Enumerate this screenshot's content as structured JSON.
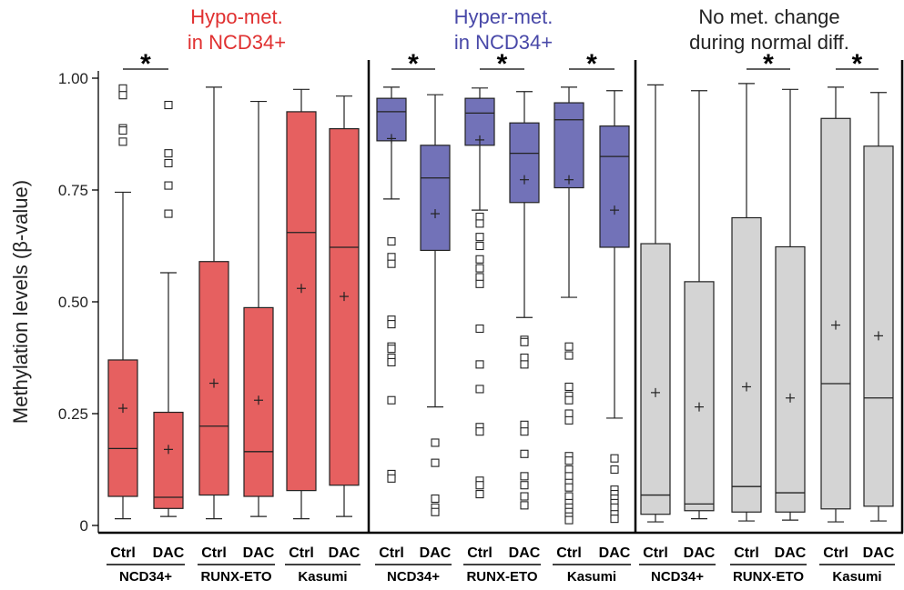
{
  "chart_data": {
    "type": "box",
    "ylabel": "Methylation levels (β-value)",
    "ylim": [
      0,
      1
    ],
    "yticks": [
      {
        "value": 0,
        "label": "0"
      },
      {
        "value": 0.25,
        "label": "0.25"
      },
      {
        "value": 0.5,
        "label": "0.50"
      },
      {
        "value": 0.75,
        "label": "0.75"
      },
      {
        "value": 1.0,
        "label": "1.00"
      }
    ],
    "colors": {
      "hypo": "#e66060",
      "hyper": "#7272b8",
      "nochange": "#d4d4d4",
      "hypo_title": "#e03030",
      "hyper_title": "#4848a8"
    },
    "panels": [
      {
        "title_lines": [
          "Hypo-met.",
          "in NCD34+"
        ],
        "title_color": "#e03030",
        "box_color": "#e66060",
        "groups": [
          "NCD34+",
          "RUNX-ETO",
          "Kasumi"
        ],
        "significance": [
          {
            "group": 0,
            "label": "*"
          }
        ],
        "boxes": [
          {
            "label": "Ctrl",
            "group": 0,
            "min": 0.015,
            "q1": 0.065,
            "median": 0.172,
            "q3": 0.37,
            "max": 0.745,
            "mean": 0.262,
            "outliers": [
              0.977,
              0.962,
              0.888,
              0.883,
              0.858
            ]
          },
          {
            "label": "DAC",
            "group": 0,
            "min": 0.02,
            "q1": 0.038,
            "median": 0.063,
            "q3": 0.253,
            "max": 0.565,
            "mean": 0.17,
            "outliers": [
              0.94,
              0.832,
              0.81,
              0.76,
              0.697
            ]
          },
          {
            "label": "Ctrl",
            "group": 1,
            "min": 0.015,
            "q1": 0.068,
            "median": 0.222,
            "q3": 0.59,
            "max": 0.98,
            "mean": 0.318,
            "outliers": []
          },
          {
            "label": "DAC",
            "group": 1,
            "min": 0.02,
            "q1": 0.065,
            "median": 0.165,
            "q3": 0.487,
            "max": 0.948,
            "mean": 0.28,
            "outliers": []
          },
          {
            "label": "Ctrl",
            "group": 2,
            "min": 0.015,
            "q1": 0.078,
            "median": 0.655,
            "q3": 0.925,
            "max": 0.975,
            "mean": 0.53,
            "outliers": []
          },
          {
            "label": "DAC",
            "group": 2,
            "min": 0.02,
            "q1": 0.09,
            "median": 0.622,
            "q3": 0.887,
            "max": 0.96,
            "mean": 0.512,
            "outliers": []
          }
        ]
      },
      {
        "title_lines": [
          "Hyper-met.",
          "in NCD34+"
        ],
        "title_color": "#4848a8",
        "box_color": "#7272b8",
        "groups": [
          "NCD34+",
          "RUNX-ETO",
          "Kasumi"
        ],
        "significance": [
          {
            "group": 0,
            "label": "*"
          },
          {
            "group": 1,
            "label": "*"
          },
          {
            "group": 2,
            "label": "*"
          }
        ],
        "boxes": [
          {
            "label": "Ctrl",
            "group": 0,
            "min": 0.73,
            "q1": 0.86,
            "median": 0.925,
            "q3": 0.955,
            "max": 0.98,
            "mean": 0.865,
            "outliers": [
              0.635,
              0.6,
              0.585,
              0.46,
              0.45,
              0.4,
              0.395,
              0.375,
              0.365,
              0.28,
              0.115,
              0.105
            ]
          },
          {
            "label": "DAC",
            "group": 0,
            "min": 0.265,
            "q1": 0.615,
            "median": 0.777,
            "q3": 0.85,
            "max": 0.963,
            "mean": 0.697,
            "outliers": [
              0.185,
              0.14,
              0.06,
              0.04,
              0.03
            ]
          },
          {
            "label": "Ctrl",
            "group": 1,
            "min": 0.705,
            "q1": 0.85,
            "median": 0.922,
            "q3": 0.955,
            "max": 0.978,
            "mean": 0.862,
            "outliers": [
              0.69,
              0.675,
              0.645,
              0.625,
              0.595,
              0.575,
              0.555,
              0.54,
              0.44,
              0.36,
              0.305,
              0.22,
              0.21,
              0.1,
              0.09,
              0.07
            ]
          },
          {
            "label": "DAC",
            "group": 1,
            "min": 0.465,
            "q1": 0.722,
            "median": 0.832,
            "q3": 0.9,
            "max": 0.97,
            "mean": 0.773,
            "outliers": [
              0.415,
              0.41,
              0.375,
              0.36,
              0.225,
              0.21,
              0.16,
              0.11,
              0.09,
              0.065,
              0.045
            ]
          },
          {
            "label": "Ctrl",
            "group": 2,
            "min": 0.51,
            "q1": 0.755,
            "median": 0.907,
            "q3": 0.945,
            "max": 0.98,
            "mean": 0.773,
            "outliers": [
              0.4,
              0.38,
              0.31,
              0.29,
              0.28,
              0.25,
              0.235,
              0.155,
              0.145,
              0.125,
              0.11,
              0.095,
              0.085,
              0.065,
              0.05,
              0.04,
              0.03,
              0.02,
              0.012
            ]
          },
          {
            "label": "DAC",
            "group": 2,
            "min": 0.24,
            "q1": 0.622,
            "median": 0.825,
            "q3": 0.893,
            "max": 0.972,
            "mean": 0.705,
            "outliers": [
              0.15,
              0.125,
              0.08,
              0.07,
              0.06,
              0.05,
              0.04,
              0.025,
              0.015
            ]
          }
        ]
      },
      {
        "title_lines": [
          "No met. change",
          "during normal diff."
        ],
        "title_color": "#222222",
        "box_color": "#d4d4d4",
        "groups": [
          "NCD34+",
          "RUNX-ETO",
          "Kasumi"
        ],
        "significance": [
          {
            "group": 1,
            "label": "*"
          },
          {
            "group": 2,
            "label": "*"
          }
        ],
        "boxes": [
          {
            "label": "Ctrl",
            "group": 0,
            "min": 0.008,
            "q1": 0.025,
            "median": 0.068,
            "q3": 0.63,
            "max": 0.985,
            "mean": 0.297,
            "outliers": []
          },
          {
            "label": "DAC",
            "group": 0,
            "min": 0.015,
            "q1": 0.033,
            "median": 0.048,
            "q3": 0.545,
            "max": 0.972,
            "mean": 0.265,
            "outliers": []
          },
          {
            "label": "Ctrl",
            "group": 1,
            "min": 0.01,
            "q1": 0.03,
            "median": 0.087,
            "q3": 0.688,
            "max": 0.988,
            "mean": 0.31,
            "outliers": []
          },
          {
            "label": "DAC",
            "group": 1,
            "min": 0.012,
            "q1": 0.03,
            "median": 0.073,
            "q3": 0.623,
            "max": 0.975,
            "mean": 0.285,
            "outliers": []
          },
          {
            "label": "Ctrl",
            "group": 2,
            "min": 0.008,
            "q1": 0.037,
            "median": 0.317,
            "q3": 0.91,
            "max": 0.98,
            "mean": 0.448,
            "outliers": []
          },
          {
            "label": "DAC",
            "group": 2,
            "min": 0.01,
            "q1": 0.043,
            "median": 0.285,
            "q3": 0.848,
            "max": 0.968,
            "mean": 0.424,
            "outliers": []
          }
        ]
      }
    ]
  }
}
